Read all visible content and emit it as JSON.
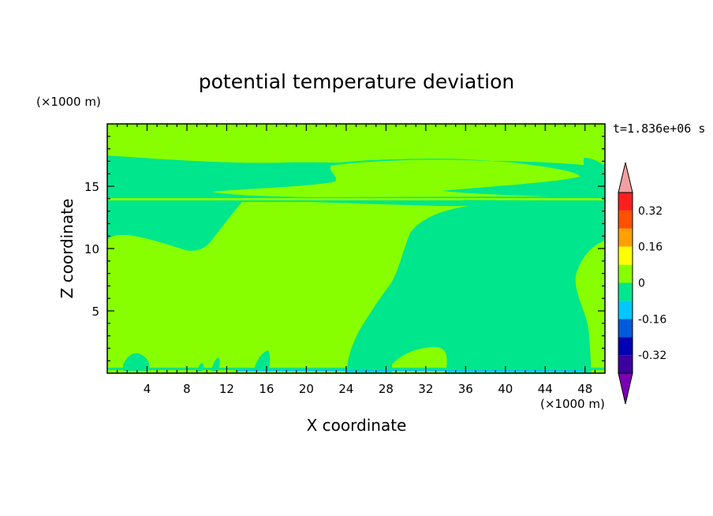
{
  "chart_data": {
    "type": "heatmap",
    "title": "potential temperature deviation",
    "xlabel": "X coordinate",
    "ylabel": "Z coordinate",
    "x_unit": "(×1000 m)",
    "y_unit": "(×1000 m)",
    "time_label": "t=1.836e+06 s",
    "xlim": [
      0,
      50
    ],
    "ylim": [
      0,
      20
    ],
    "x_ticks": [
      4,
      8,
      12,
      16,
      20,
      24,
      28,
      32,
      36,
      40,
      44,
      48
    ],
    "y_ticks": [
      5,
      10,
      15
    ],
    "colorbar": {
      "levels": [
        -0.4,
        -0.32,
        -0.24,
        -0.16,
        -0.08,
        0,
        0.08,
        0.16,
        0.24,
        0.32,
        0.4
      ],
      "colors": [
        "#7b00b4",
        "#3c00a0",
        "#0000b4",
        "#005adc",
        "#00c8ff",
        "#00e68c",
        "#87ff00",
        "#ffff00",
        "#ffa000",
        "#ff5000",
        "#ff1e1e",
        "#f0a0a0"
      ],
      "labels": [
        "0.32",
        "0.16",
        "0",
        "-0.16",
        "-0.32"
      ],
      "extend": "both"
    },
    "regions": [
      {
        "name": "background",
        "level": "0 to 0.08",
        "color": "#87ff00"
      },
      {
        "name": "upper-band",
        "level": "-0.08 to 0",
        "color": "#00e68c"
      },
      {
        "name": "east-lower-cell",
        "level": "-0.08 to 0",
        "color": "#00e68c"
      },
      {
        "name": "west-mid-cell",
        "level": "-0.08 to 0",
        "color": "#00e68c"
      }
    ]
  }
}
